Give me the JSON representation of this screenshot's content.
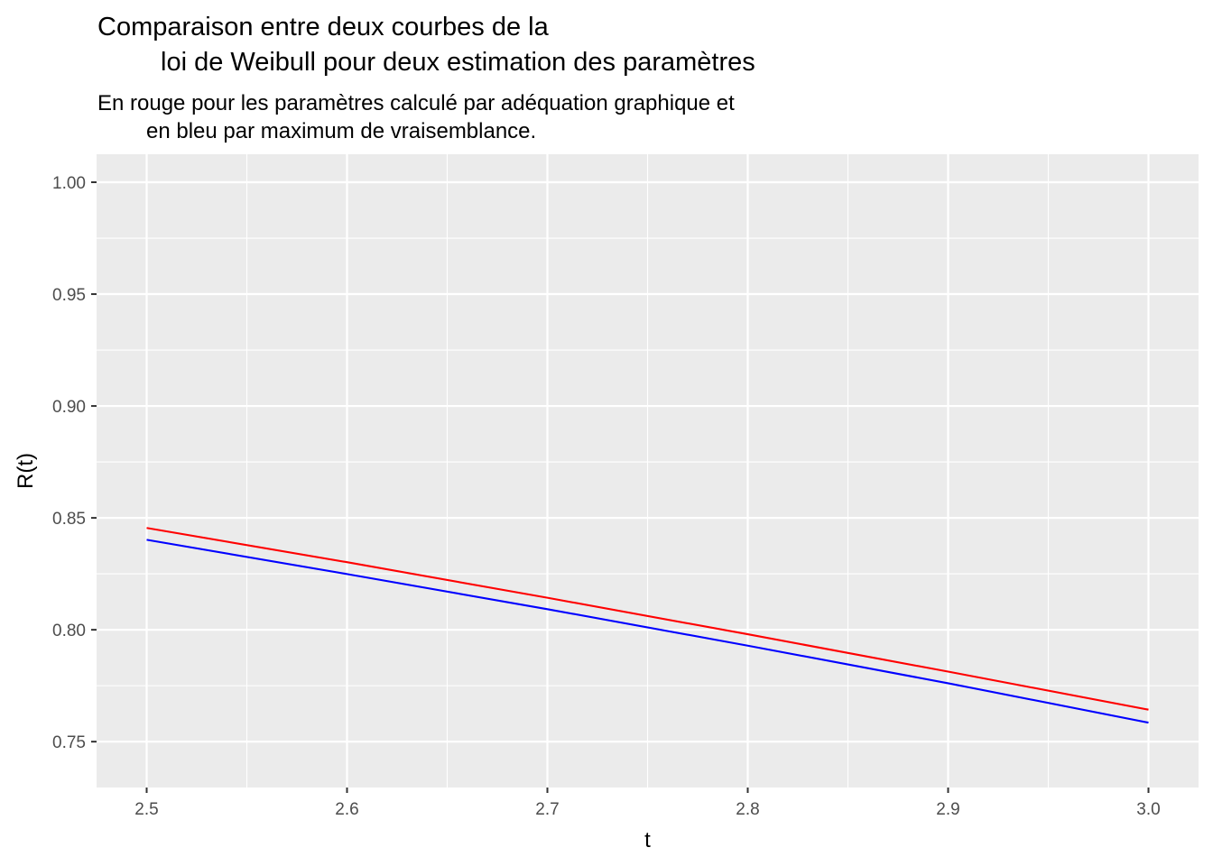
{
  "chart_data": {
    "type": "line",
    "title_lines": [
      "Comparaison entre deux courbes de la",
      "loi de Weibull pour deux estimation des paramètres"
    ],
    "subtitle_lines": [
      "En rouge pour les paramètres calculé par adéquation graphique et",
      "en bleu par maximum de vraisemblance."
    ],
    "xlabel": "t",
    "ylabel": "R(t)",
    "xlim": [
      2.475,
      3.025
    ],
    "ylim": [
      0.7295,
      1.0125
    ],
    "x_ticks": [
      2.5,
      2.6,
      2.7,
      2.8,
      2.9,
      3.0
    ],
    "x_tick_labels": [
      "2.5",
      "2.6",
      "2.7",
      "2.8",
      "2.9",
      "3.0"
    ],
    "y_ticks": [
      0.75,
      0.8,
      0.85,
      0.9,
      0.95,
      1.0
    ],
    "y_tick_labels": [
      "0.75",
      "0.80",
      "0.85",
      "0.90",
      "0.95",
      "1.00"
    ],
    "x_minor": [
      2.55,
      2.65,
      2.75,
      2.85,
      2.95
    ],
    "y_minor": [
      0.775,
      0.825,
      0.875,
      0.925,
      0.975
    ],
    "grid": true,
    "panel_background": "#ebebeb",
    "grid_color": "#ffffff",
    "series": [
      {
        "color": "#ff0000",
        "x": [
          2.5,
          2.6,
          2.7,
          2.8,
          2.9,
          3.0
        ],
        "y": [
          0.8455,
          0.8302,
          0.8143,
          0.798,
          0.7813,
          0.7643
        ]
      },
      {
        "color": "#0000ff",
        "x": [
          2.5,
          2.6,
          2.7,
          2.8,
          2.9,
          3.0
        ],
        "y": [
          0.8402,
          0.8249,
          0.8092,
          0.7929,
          0.7761,
          0.7585
        ]
      }
    ]
  }
}
